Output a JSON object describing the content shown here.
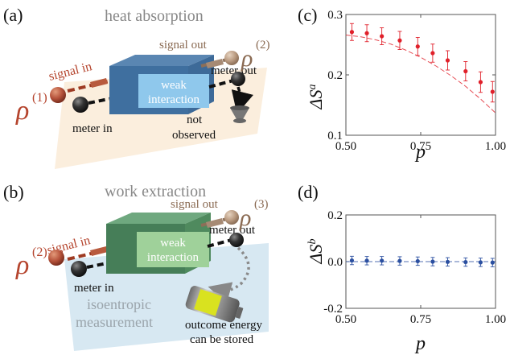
{
  "panels": {
    "a": {
      "tag": "(a)",
      "title": "heat absorption",
      "rho_in": "ρ(1)",
      "rho_in_base": "ρ",
      "rho_in_sup": "(1)",
      "rho_out": "ρ(2)",
      "rho_out_base": "ρ",
      "rho_out_sup": "(2)",
      "signal_in": "signal in",
      "signal_out": "signal out",
      "box_line1": "weak",
      "box_line2": "interaction",
      "meter_in": "meter in",
      "meter_out": "meter out",
      "not_observed_1": "not",
      "not_observed_2": "observed"
    },
    "b": {
      "tag": "(b)",
      "title": "work extraction",
      "rho_in": "ρ(2)",
      "rho_in_base": "ρ",
      "rho_in_sup": "(2)",
      "rho_out": "ρ(3)",
      "rho_out_base": "ρ",
      "rho_out_sup": "(3)",
      "signal_in": "signal in",
      "signal_out": "signal out",
      "box_line1": "weak",
      "box_line2": "interaction",
      "meter_in": "meter in",
      "meter_out": "meter out",
      "iso_1": "isoentropic",
      "iso_2": "measurement",
      "stored_1": "outcome energy",
      "stored_2": "can be stored"
    }
  },
  "chart_data": [
    {
      "tag": "(c)",
      "type": "scatter",
      "xlabel": "p",
      "ylabel_base": "ΔS",
      "ylabel_sup": "a",
      "xlim": [
        0.5,
        1.0
      ],
      "ylim": [
        0.1,
        0.3
      ],
      "xticks": [
        0.5,
        0.75,
        1.0
      ],
      "xtick_labels": [
        "0.50",
        "0.75",
        "1.00"
      ],
      "yticks": [
        0.1,
        0.2,
        0.3
      ],
      "ytick_labels": [
        "0.1",
        "0.2",
        "0.3"
      ],
      "color": "#e0202a",
      "x": [
        0.52,
        0.57,
        0.62,
        0.68,
        0.74,
        0.79,
        0.84,
        0.9,
        0.95,
        0.99
      ],
      "y": [
        0.271,
        0.269,
        0.264,
        0.257,
        0.247,
        0.236,
        0.224,
        0.206,
        0.188,
        0.172
      ],
      "err": [
        0.014,
        0.014,
        0.014,
        0.015,
        0.015,
        0.015,
        0.016,
        0.016,
        0.017,
        0.017
      ],
      "fit_x": [
        0.5,
        0.55,
        0.6,
        0.65,
        0.7,
        0.75,
        0.8,
        0.85,
        0.9,
        0.95,
        1.0
      ],
      "fit_y": [
        0.266,
        0.263,
        0.258,
        0.251,
        0.241,
        0.229,
        0.215,
        0.199,
        0.181,
        0.16,
        0.137
      ]
    },
    {
      "tag": "(d)",
      "type": "scatter",
      "xlabel": "p",
      "ylabel_base": "ΔS",
      "ylabel_sup": "b",
      "xlim": [
        0.5,
        1.0
      ],
      "ylim": [
        -0.2,
        0.2
      ],
      "xticks": [
        0.5,
        0.75,
        1.0
      ],
      "xtick_labels": [
        "0.50",
        "0.75",
        "1.00"
      ],
      "yticks": [
        -0.2,
        0.0,
        0.2
      ],
      "ytick_labels": [
        "-0.2",
        "0.0",
        "0.2"
      ],
      "color": "#2b4fa0",
      "x": [
        0.52,
        0.57,
        0.62,
        0.68,
        0.74,
        0.79,
        0.84,
        0.9,
        0.95,
        0.99
      ],
      "y": [
        0.005,
        0.004,
        0.004,
        0.003,
        0.002,
        0.0,
        -0.001,
        -0.002,
        -0.003,
        -0.004
      ],
      "err": [
        0.018,
        0.018,
        0.018,
        0.018,
        0.018,
        0.018,
        0.018,
        0.018,
        0.018,
        0.018
      ],
      "fit_x": [
        0.5,
        1.0
      ],
      "fit_y": [
        0.0,
        0.0
      ]
    }
  ]
}
